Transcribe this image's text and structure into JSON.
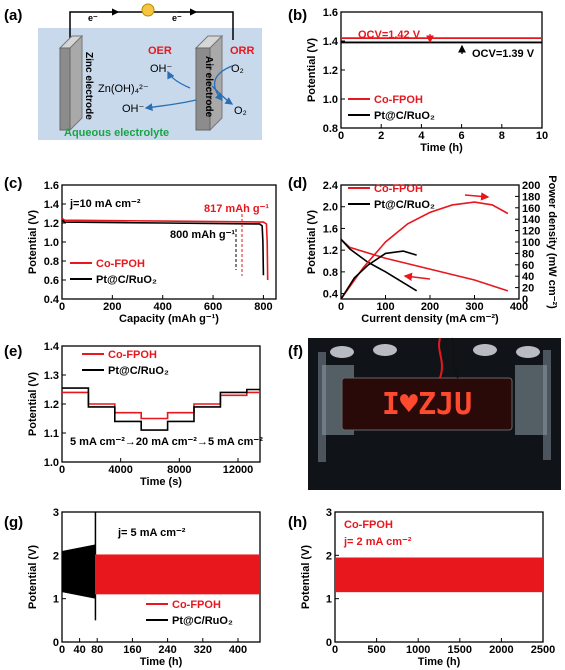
{
  "colors": {
    "co": "#e8171d",
    "pt": "#000000"
  },
  "panels": {
    "a": {
      "letter": "(a)",
      "e_left": "e⁻",
      "e_right": "e⁻",
      "zinc": "Zinc electrode",
      "air": "Air electrode",
      "oer": "OER",
      "orr": "ORR",
      "oh1": "OH⁻",
      "zn": "Zn(OH)₄²⁻",
      "oh2": "OH⁻",
      "o2a": "O₂",
      "o2b": "O₂",
      "electrolyte": "Aqueous electrolyte"
    },
    "b": {
      "letter": "(b)",
      "ocv1": "OCV=1.42 V",
      "ocv2": "OCV=1.39 V",
      "leg1": "Co-FPOH",
      "leg2": "Pt@C/RuO₂"
    },
    "c": {
      "letter": "(c)",
      "cur": "j=10 mA cm⁻²",
      "cap1": "817 mAh g⁻¹",
      "cap2": "800 mAh g⁻¹",
      "leg1": "Co-FPOH",
      "leg2": "Pt@C/RuO₂"
    },
    "d": {
      "letter": "(d)",
      "leg1": "Co-FPOH",
      "leg2": "Pt@C/RuO₂"
    },
    "e": {
      "letter": "(e)",
      "steps": "5 mA cm⁻²→20 mA cm⁻²→5 mA cm⁻²",
      "leg1": "Co-FPOH",
      "leg2": "Pt@C/RuO₂"
    },
    "f": {
      "letter": "(f)",
      "sign": "I♥ZJU"
    },
    "g": {
      "letter": "(g)",
      "cur": "j= 5 mA cm⁻²",
      "leg1": "Co-FPOH",
      "leg2": "Pt@C/RuO₂"
    },
    "h": {
      "letter": "(h)",
      "leg1": "Co-FPOH",
      "cur": "j= 2 mA cm⁻²"
    }
  },
  "chart_data": [
    {
      "panel": "b",
      "type": "line",
      "xlabel": "Time (h)",
      "ylabel": "Potential (V)",
      "xlim": [
        0,
        10
      ],
      "ylim": [
        0.8,
        1.6
      ],
      "xticks": [
        0,
        2,
        4,
        6,
        8,
        10
      ],
      "yticks": [
        0.8,
        1.0,
        1.2,
        1.4,
        1.6
      ],
      "series": [
        {
          "name": "Co-FPOH",
          "x": [
            0,
            10
          ],
          "y": [
            1.42,
            1.42
          ]
        },
        {
          "name": "Pt@C/RuO₂",
          "x": [
            0,
            10
          ],
          "y": [
            1.39,
            1.39
          ]
        }
      ]
    },
    {
      "panel": "c",
      "type": "line",
      "xlabel": "Capacity (mAh g⁻¹)",
      "ylabel": "Potential (V)",
      "xlim": [
        0,
        850
      ],
      "ylim": [
        0.4,
        1.6
      ],
      "xticks": [
        0,
        200,
        400,
        600,
        800
      ],
      "yticks": [
        0.4,
        0.6,
        0.8,
        1.0,
        1.2,
        1.4,
        1.6
      ],
      "series": [
        {
          "name": "Co-FPOH",
          "x": [
            0,
            10,
            400,
            800,
            812,
            815,
            817
          ],
          "y": [
            1.25,
            1.23,
            1.22,
            1.21,
            1.19,
            1.0,
            0.6
          ]
        },
        {
          "name": "Pt@C/RuO₂",
          "x": [
            0,
            10,
            400,
            785,
            795,
            798,
            800
          ],
          "y": [
            1.23,
            1.21,
            1.2,
            1.19,
            1.17,
            1.0,
            0.65
          ]
        }
      ]
    },
    {
      "panel": "d",
      "type": "line",
      "xlabel": "Current density (mA cm⁻²)",
      "ylabel": "Potential (V)",
      "y2label": "Power density (mW cm⁻²)",
      "xlim": [
        0,
        400
      ],
      "ylim": [
        0.3,
        2.4
      ],
      "y2lim": [
        0,
        200
      ],
      "xticks": [
        0,
        100,
        200,
        300,
        400
      ],
      "yticks": [
        0.4,
        0.8,
        1.2,
        1.6,
        2.0,
        2.4
      ],
      "y2ticks": [
        0,
        20,
        40,
        60,
        80,
        100,
        120,
        140,
        160,
        180,
        200
      ],
      "series": [
        {
          "name": "Co-FPOH",
          "axis": "left",
          "x": [
            0,
            20,
            100,
            200,
            300,
            375
          ],
          "y": [
            1.4,
            1.25,
            1.05,
            0.85,
            0.65,
            0.45
          ]
        },
        {
          "name": "Pt@C/RuO₂",
          "axis": "left",
          "x": [
            0,
            20,
            60,
            100,
            140,
            170
          ],
          "y": [
            1.4,
            1.22,
            0.98,
            0.8,
            0.6,
            0.45
          ]
        },
        {
          "name": "Co-FPOH",
          "axis": "right",
          "x": [
            0,
            50,
            100,
            150,
            200,
            250,
            300,
            340,
            375
          ],
          "y": [
            0,
            55,
            100,
            132,
            152,
            165,
            170,
            165,
            150
          ]
        },
        {
          "name": "Pt@C/RuO₂",
          "axis": "right",
          "x": [
            0,
            30,
            60,
            100,
            140,
            170
          ],
          "y": [
            0,
            37,
            59,
            80,
            84,
            77
          ]
        }
      ]
    },
    {
      "panel": "e",
      "type": "line",
      "xlabel": "Time (s)",
      "ylabel": "Potential (V)",
      "xlim": [
        0,
        13500
      ],
      "ylim": [
        1.0,
        1.4
      ],
      "xticks": [
        0,
        4000,
        8000,
        12000
      ],
      "yticks": [
        1.0,
        1.1,
        1.2,
        1.3,
        1.4
      ],
      "series": [
        {
          "name": "Co-FPOH",
          "x": [
            0,
            1800,
            1800,
            3600,
            3600,
            5400,
            5400,
            7200,
            7200,
            9000,
            9000,
            10800,
            10800,
            12600,
            12600,
            13500
          ],
          "y": [
            1.24,
            1.24,
            1.2,
            1.2,
            1.17,
            1.17,
            1.15,
            1.15,
            1.17,
            1.17,
            1.2,
            1.2,
            1.23,
            1.23,
            1.24,
            1.24
          ]
        },
        {
          "name": "Pt@C/RuO₂",
          "x": [
            0,
            1800,
            1800,
            3600,
            3600,
            5400,
            5400,
            7200,
            7200,
            9000,
            9000,
            10800,
            10800,
            12600,
            12600,
            13500
          ],
          "y": [
            1.255,
            1.255,
            1.19,
            1.19,
            1.14,
            1.14,
            1.11,
            1.11,
            1.14,
            1.14,
            1.19,
            1.19,
            1.24,
            1.24,
            1.25,
            1.25
          ]
        }
      ]
    },
    {
      "panel": "g",
      "type": "area",
      "xlabel": "Time (h)",
      "ylabel": "Potential (V)",
      "xlim": [
        0,
        450
      ],
      "ylim": [
        0,
        3
      ],
      "xticks": [
        0,
        40,
        80,
        160,
        240,
        320,
        400
      ],
      "yticks": [
        0,
        1,
        2,
        3
      ],
      "series": [
        {
          "name": "Co-FPOH",
          "x": [
            75,
            450
          ],
          "upper": [
            2.02,
            2.02
          ],
          "lower": [
            1.1,
            1.1
          ]
        },
        {
          "name": "Pt@C/RuO₂",
          "x": [
            0,
            75
          ],
          "upper": [
            2.1,
            2.25
          ],
          "lower": [
            1.15,
            1.0
          ]
        }
      ]
    },
    {
      "panel": "h",
      "type": "area",
      "xlabel": "Time (h)",
      "ylabel": "Potential (V)",
      "xlim": [
        0,
        2500
      ],
      "ylim": [
        0,
        3
      ],
      "xticks": [
        0,
        500,
        1000,
        1500,
        2000,
        2500
      ],
      "yticks": [
        0,
        1,
        2,
        3
      ],
      "series": [
        {
          "name": "Co-FPOH",
          "x": [
            0,
            2500
          ],
          "upper": [
            1.95,
            1.95
          ],
          "lower": [
            1.15,
            1.15
          ]
        }
      ]
    }
  ]
}
